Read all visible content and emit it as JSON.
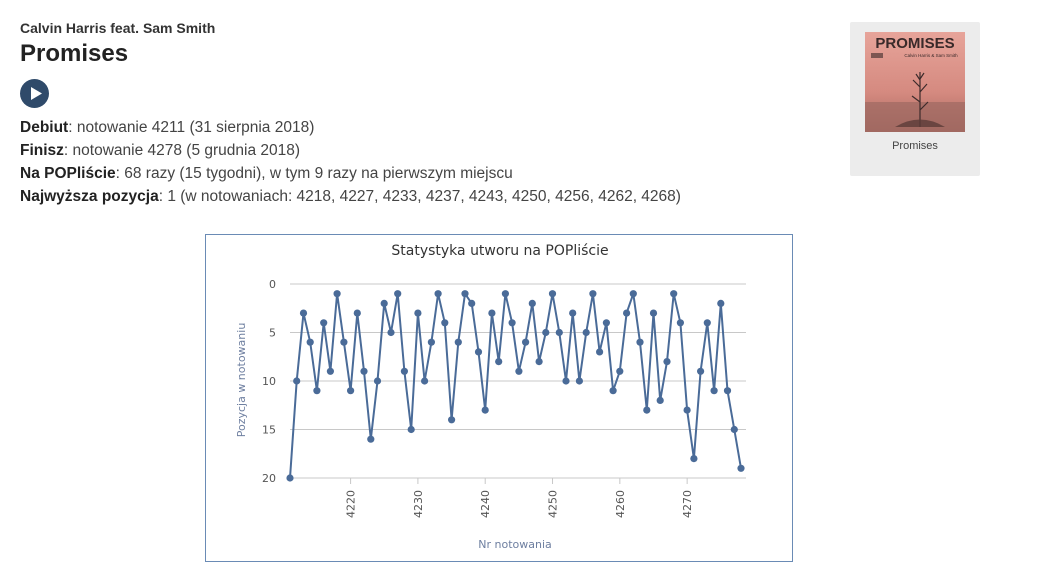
{
  "song": {
    "artist": "Calvin Harris feat. Sam Smith",
    "title": "Promises"
  },
  "facts": {
    "debut_label": "Debiut",
    "debut_value": ": notowanie 4211 (31 sierpnia 2018)",
    "finish_label": "Finisz",
    "finish_value": ": notowanie 4278 (5 grudnia 2018)",
    "onlist_label": "Na POPliście",
    "onlist_value": ": 68 razy (15 tygodni), w tym 9 razy na pierwszym miejscu",
    "peak_label": "Najwyższa pozycja",
    "peak_value": ": 1 (w notowaniach: 4218, 4227, 4233, 4237, 4243, 4250, 4256, 4262, 4268)"
  },
  "cover": {
    "art_title": "PROMISES",
    "art_subtitle": "Calvin Harris & Sam Smith",
    "caption": "Promises",
    "colors": {
      "background": "#d98e86",
      "text": "#3a2a2a"
    }
  },
  "icons": {
    "play": "play-icon"
  },
  "colors": {
    "line": "#4a6b98",
    "grid": "#c8c8c8",
    "border": "#6a8bb5",
    "play_button": "#2f4a6a"
  },
  "chart_data": {
    "type": "line",
    "title": "Statystyka utworu na POPliście",
    "xlabel": "Nr notowania",
    "ylabel": "Pozycja w notowaniu",
    "x": [
      4211,
      4212,
      4213,
      4214,
      4215,
      4216,
      4217,
      4218,
      4219,
      4220,
      4221,
      4222,
      4223,
      4224,
      4225,
      4226,
      4227,
      4228,
      4229,
      4230,
      4231,
      4232,
      4233,
      4234,
      4235,
      4236,
      4237,
      4238,
      4239,
      4240,
      4241,
      4242,
      4243,
      4244,
      4245,
      4246,
      4247,
      4248,
      4249,
      4250,
      4251,
      4252,
      4253,
      4254,
      4255,
      4256,
      4257,
      4258,
      4259,
      4260,
      4261,
      4262,
      4263,
      4264,
      4265,
      4266,
      4267,
      4268,
      4269,
      4270,
      4271,
      4272,
      4273,
      4274,
      4275,
      4276,
      4277,
      4278
    ],
    "series": [
      {
        "values": [
          20,
          10,
          3,
          6,
          11,
          4,
          9,
          1,
          6,
          11,
          3,
          9,
          16,
          10,
          2,
          5,
          1,
          9,
          15,
          3,
          10,
          6,
          1,
          4,
          14,
          6,
          1,
          2,
          7,
          13,
          3,
          8,
          1,
          4,
          9,
          6,
          2,
          8,
          5,
          1,
          5,
          10,
          3,
          10,
          5,
          1,
          7,
          4,
          11,
          9,
          3,
          1,
          6,
          13,
          3,
          12,
          8,
          1,
          4,
          13,
          18,
          9,
          4,
          11,
          2,
          11,
          15,
          19
        ]
      }
    ],
    "xticks": [
      4220,
      4230,
      4240,
      4250,
      4260,
      4270
    ],
    "yticks": [
      0,
      5,
      10,
      15,
      20
    ],
    "xlim": [
      4211,
      4278
    ],
    "ylim": [
      20,
      0
    ],
    "y_reversed": true,
    "grid": "horizontal",
    "legend": "none"
  }
}
